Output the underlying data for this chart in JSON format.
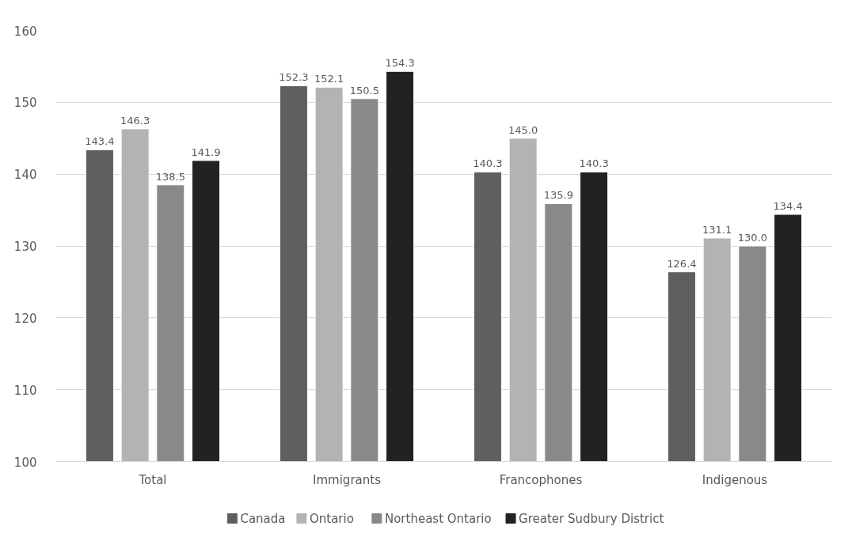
{
  "chart_data": {
    "type": "bar",
    "categories": [
      "Total",
      "Immigrants",
      "Francophones",
      "Indigenous"
    ],
    "series": [
      {
        "name": "Canada",
        "color": "#5f5f5f",
        "values": [
          143.4,
          152.3,
          140.3,
          126.4
        ],
        "value_labels": [
          "143.4",
          "152.3",
          "140.3",
          "126.4"
        ]
      },
      {
        "name": "Ontario",
        "color": "#b3b3b3",
        "values": [
          146.3,
          152.1,
          145.0,
          131.1
        ],
        "value_labels": [
          "146.3",
          "152.1",
          "145.0",
          "131.1"
        ]
      },
      {
        "name": "Northeast Ontario",
        "color": "#898989",
        "values": [
          138.5,
          150.5,
          135.9,
          130.0
        ],
        "value_labels": [
          "138.5",
          "150.5",
          "135.9",
          "130.0"
        ]
      },
      {
        "name": "Greater Sudbury District",
        "color": "#222222",
        "values": [
          141.9,
          154.3,
          140.3,
          134.4
        ],
        "value_labels": [
          "141.9",
          "154.3",
          "140.3",
          "134.4"
        ]
      }
    ],
    "ylim": [
      100,
      160
    ],
    "yticks": [
      100,
      110,
      120,
      130,
      140,
      150,
      160
    ],
    "grid": "y",
    "legend": "bottom"
  }
}
